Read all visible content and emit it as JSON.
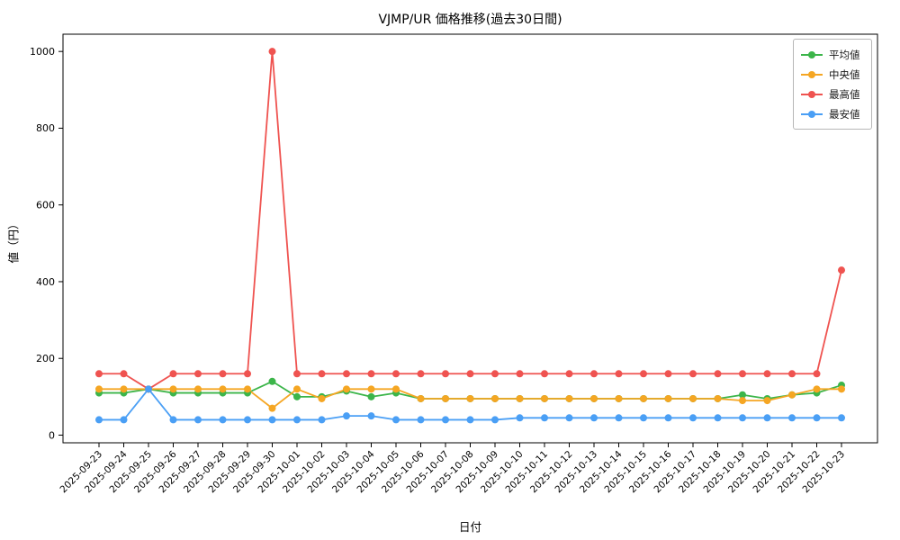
{
  "chart_data": {
    "type": "line",
    "title": "VJMP/UR 価格推移(過去30日間)",
    "xlabel": "日付",
    "ylabel": "値（円）",
    "ylim": [
      -20,
      1045
    ],
    "yticks": [
      0,
      200,
      400,
      600,
      800,
      1000
    ],
    "grid": false,
    "legend_position": "upper-right",
    "x": [
      "2025-09-23",
      "2025-09-24",
      "2025-09-25",
      "2025-09-26",
      "2025-09-27",
      "2025-09-28",
      "2025-09-29",
      "2025-09-30",
      "2025-10-01",
      "2025-10-02",
      "2025-10-03",
      "2025-10-04",
      "2025-10-05",
      "2025-10-06",
      "2025-10-07",
      "2025-10-08",
      "2025-10-09",
      "2025-10-10",
      "2025-10-11",
      "2025-10-12",
      "2025-10-13",
      "2025-10-14",
      "2025-10-15",
      "2025-10-16",
      "2025-10-17",
      "2025-10-18",
      "2025-10-19",
      "2025-10-20",
      "2025-10-21",
      "2025-10-22",
      "2025-10-23"
    ],
    "series": [
      {
        "name": "平均値",
        "color": "#3cb54a",
        "values": [
          110,
          110,
          120,
          110,
          110,
          110,
          110,
          140,
          100,
          100,
          115,
          100,
          110,
          95,
          95,
          95,
          95,
          95,
          95,
          95,
          95,
          95,
          95,
          95,
          95,
          95,
          105,
          95,
          105,
          110,
          130
        ]
      },
      {
        "name": "中央値",
        "color": "#f5a623",
        "values": [
          120,
          120,
          120,
          120,
          120,
          120,
          120,
          70,
          120,
          95,
          120,
          120,
          120,
          95,
          95,
          95,
          95,
          95,
          95,
          95,
          95,
          95,
          95,
          95,
          95,
          95,
          90,
          90,
          105,
          120,
          120
        ]
      },
      {
        "name": "最高値",
        "color": "#ef5350",
        "values": [
          160,
          160,
          120,
          160,
          160,
          160,
          160,
          1000,
          160,
          160,
          160,
          160,
          160,
          160,
          160,
          160,
          160,
          160,
          160,
          160,
          160,
          160,
          160,
          160,
          160,
          160,
          160,
          160,
          160,
          160,
          430
        ]
      },
      {
        "name": "最安値",
        "color": "#4a9ff5",
        "values": [
          40,
          40,
          120,
          40,
          40,
          40,
          40,
          40,
          40,
          40,
          50,
          50,
          40,
          40,
          40,
          40,
          40,
          45,
          45,
          45,
          45,
          45,
          45,
          45,
          45,
          45,
          45,
          45,
          45,
          45,
          45
        ]
      }
    ]
  }
}
